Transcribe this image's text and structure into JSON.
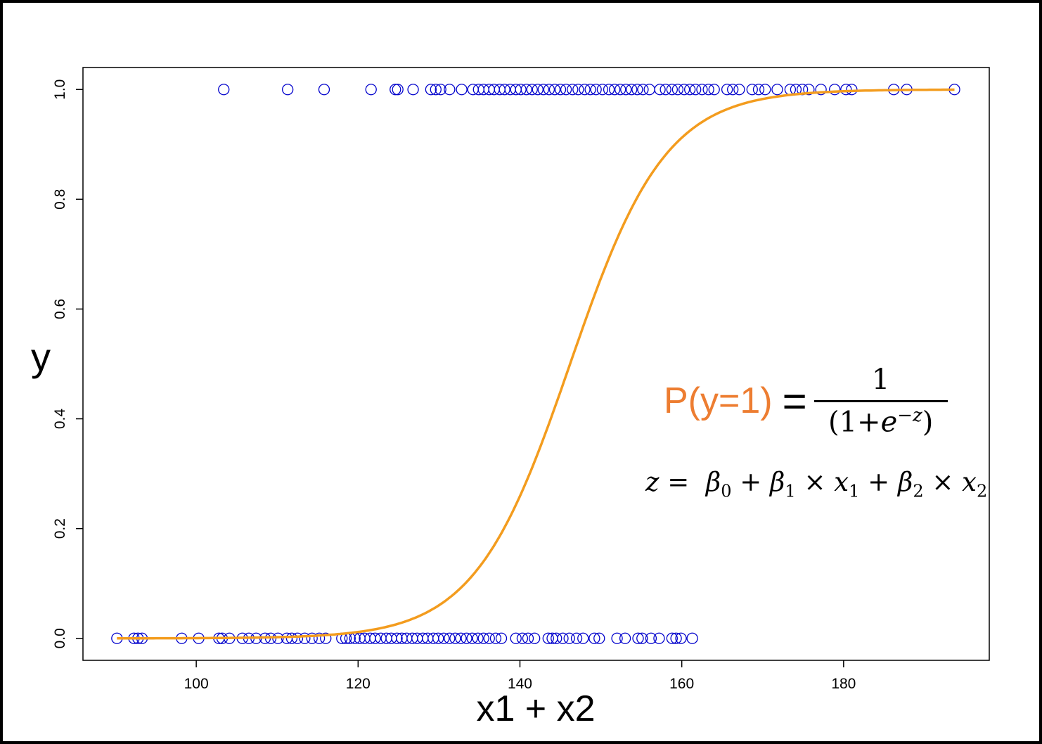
{
  "chart_data": {
    "type": "scatter",
    "xlabel": "x1 + x2",
    "ylabel": "y",
    "xlim": [
      86,
      198
    ],
    "ylim": [
      -0.04,
      1.04
    ],
    "x_ticks": [
      100,
      120,
      140,
      160,
      180
    ],
    "y_ticks": [
      0.0,
      0.2,
      0.4,
      0.6,
      0.8,
      1.0
    ],
    "x_tick_labels": [
      "100",
      "120",
      "140",
      "160",
      "180"
    ],
    "y_tick_labels": [
      "0.0",
      "0.2",
      "0.4",
      "0.6",
      "0.8",
      "1.0"
    ],
    "grid": false,
    "series": [
      {
        "marker": "open-circle",
        "color": "#0000cc",
        "y": 0,
        "x": [
          90.2,
          92.3,
          92.8,
          93.3,
          98.2,
          100.3,
          102.8,
          103.2,
          104.1,
          105.7,
          106.5,
          107.4,
          108.5,
          109.2,
          110.1,
          111.2,
          111.8,
          112.5,
          113.4,
          114.3,
          115.2,
          116.0,
          118.0,
          118.5,
          119.0,
          119.6,
          120.2,
          120.8,
          121.5,
          122.1,
          122.8,
          123.5,
          124.1,
          124.8,
          125.4,
          126.0,
          126.7,
          127.3,
          128.0,
          128.6,
          129.3,
          129.9,
          130.6,
          131.3,
          132.0,
          132.7,
          133.4,
          134.1,
          134.8,
          135.5,
          136.2,
          137.0,
          137.7,
          139.5,
          140.3,
          141.0,
          141.8,
          143.5,
          144.0,
          144.5,
          145.3,
          146.1,
          147.0,
          147.8,
          149.2,
          149.8,
          152.0,
          153.0,
          154.6,
          155.1,
          156.2,
          157.2,
          158.8,
          159.3,
          159.9,
          161.3
        ]
      },
      {
        "marker": "open-circle",
        "color": "#0000cc",
        "y": 1,
        "x": [
          103.4,
          111.3,
          115.8,
          121.6,
          124.6,
          124.9,
          126.8,
          129.0,
          129.6,
          130.2,
          131.3,
          132.8,
          134.2,
          134.9,
          135.5,
          136.2,
          136.8,
          137.5,
          138.1,
          138.8,
          139.5,
          140.1,
          140.8,
          141.5,
          142.2,
          142.9,
          143.6,
          144.3,
          145.0,
          145.7,
          146.5,
          147.2,
          148.0,
          148.7,
          149.4,
          150.2,
          151.0,
          151.7,
          152.4,
          153.1,
          153.8,
          154.5,
          155.2,
          156.0,
          157.3,
          158.0,
          158.8,
          159.5,
          160.3,
          161.0,
          161.7,
          162.5,
          163.3,
          164.0,
          165.6,
          166.3,
          167.1,
          168.7,
          169.5,
          170.3,
          171.8,
          173.4,
          174.1,
          174.9,
          175.7,
          177.2,
          178.9,
          180.3,
          181.0,
          186.2,
          187.8,
          193.7
        ]
      },
      {
        "type": "line",
        "color": "#f39c1e",
        "model": "logistic",
        "midpoint": 146.2,
        "scale": 5.9,
        "x_range": [
          90.2,
          193.7
        ]
      }
    ]
  },
  "formula": {
    "p_label": "P(y=1)",
    "equals": "=",
    "numerator": "1",
    "den_open": "(1+",
    "den_e": "e",
    "den_exp": "−z",
    "den_close": ")",
    "z_line": {
      "z": "z",
      "eq": "=",
      "b0": "β",
      "b0_sub": "0",
      "plus1": "+",
      "b1": "β",
      "b1_sub": "1",
      "times1": "×",
      "x1": "x",
      "x1_sub": "1",
      "plus2": "+",
      "b2": "β",
      "b2_sub": "2",
      "times2": "×",
      "x2": "x",
      "x2_sub": "2"
    }
  }
}
